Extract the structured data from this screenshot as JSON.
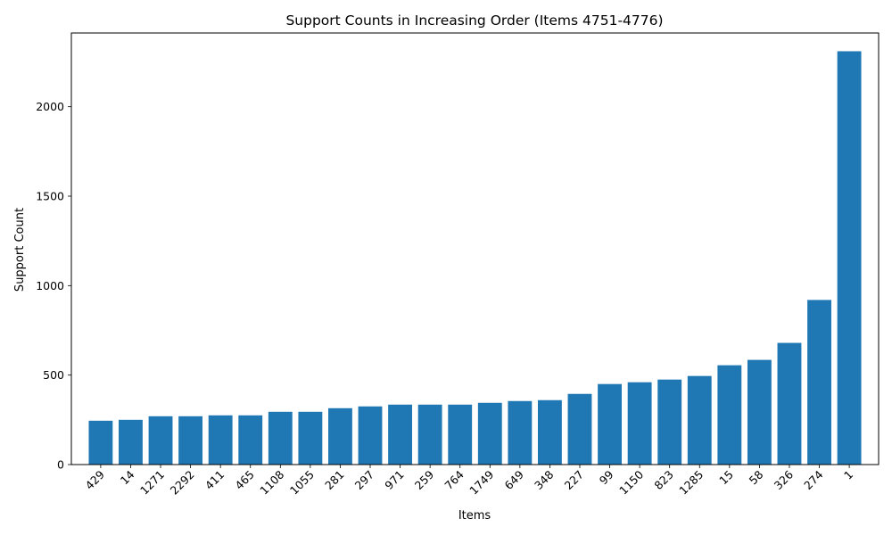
{
  "chart_data": {
    "type": "bar",
    "title": "Support Counts in Increasing Order (Items 4751-4776)",
    "xlabel": "Items",
    "ylabel": "Support Count",
    "categories": [
      "429",
      "14",
      "1271",
      "2292",
      "411",
      "465",
      "1108",
      "1055",
      "281",
      "297",
      "971",
      "259",
      "764",
      "1749",
      "649",
      "348",
      "227",
      "99",
      "1150",
      "823",
      "1285",
      "15",
      "58",
      "326",
      "274",
      "1"
    ],
    "values": [
      245,
      250,
      270,
      270,
      275,
      275,
      295,
      295,
      315,
      325,
      335,
      335,
      335,
      345,
      355,
      360,
      395,
      450,
      460,
      475,
      495,
      555,
      585,
      680,
      920,
      2310
    ],
    "ylim": [
      0,
      2412
    ],
    "yticks": [
      0,
      500,
      1000,
      1500,
      2000
    ],
    "bar_color": "#1f77b4",
    "grid": false,
    "legend": "none"
  }
}
